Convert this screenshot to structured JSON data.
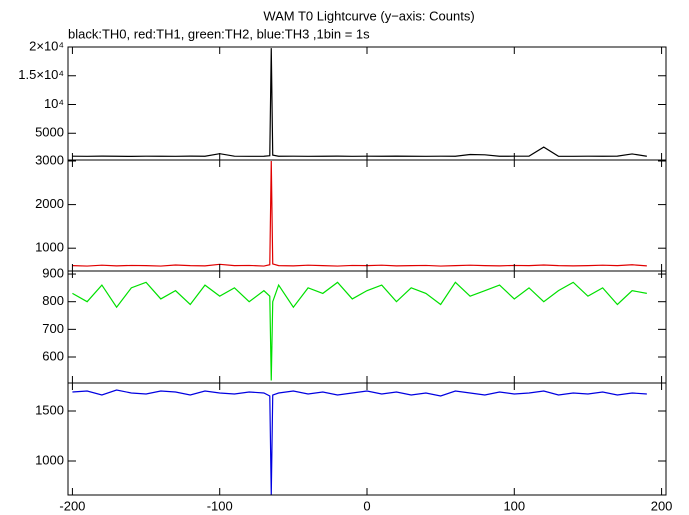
{
  "chart_data": [
    {
      "type": "line",
      "title": "WAM T0 Lightcurve (y−axis: Counts)",
      "subtitle": "black:TH0, red:TH1, green:TH2, blue:TH3 ,1bin = 1s",
      "x": [
        -200,
        -190,
        -180,
        -170,
        -160,
        -150,
        -140,
        -130,
        -120,
        -110,
        -100,
        -90,
        -80,
        -70,
        -66,
        -65,
        -64,
        -60,
        -50,
        -40,
        -30,
        -20,
        -10,
        0,
        10,
        20,
        30,
        40,
        50,
        60,
        70,
        80,
        90,
        100,
        110,
        120,
        130,
        140,
        150,
        160,
        170,
        180,
        190
      ],
      "series": [
        {
          "name": "TH0",
          "color": "#000000",
          "values": [
            1010,
            990,
            1020,
            1000,
            980,
            1010,
            1000,
            990,
            1020,
            1000,
            1450,
            1010,
            990,
            1000,
            1100,
            19800,
            1200,
            1000,
            1010,
            990,
            1000,
            1020,
            990,
            1010,
            1000,
            1030,
            1000,
            990,
            1010,
            1000,
            1300,
            1250,
            1000,
            1010,
            1020,
            2600,
            1000,
            990,
            1010,
            1000,
            1020,
            1400,
            1000
          ]
        }
      ],
      "xlim": [
        -203,
        203
      ],
      "ylim": [
        350,
        20000
      ],
      "yticks": [
        {
          "value": 5000,
          "label": "5000"
        },
        {
          "value": 10000,
          "label": "10⁴"
        },
        {
          "value": 15000,
          "label": "1.5×10⁴"
        },
        {
          "value": 20000,
          "label": "2×10⁴"
        }
      ]
    },
    {
      "type": "line",
      "x": [
        -200,
        -190,
        -180,
        -170,
        -160,
        -150,
        -140,
        -130,
        -120,
        -110,
        -100,
        -90,
        -80,
        -70,
        -66,
        -65,
        -64,
        -60,
        -50,
        -40,
        -30,
        -20,
        -10,
        0,
        10,
        20,
        30,
        40,
        50,
        60,
        70,
        80,
        90,
        100,
        110,
        120,
        130,
        140,
        150,
        160,
        170,
        180,
        190
      ],
      "series": [
        {
          "name": "TH1",
          "color": "#e00000",
          "values": [
            600,
            590,
            610,
            595,
            605,
            600,
            590,
            615,
            600,
            595,
            630,
            600,
            605,
            590,
            620,
            3000,
            640,
            600,
            595,
            610,
            600,
            590,
            605,
            600,
            610,
            595,
            600,
            605,
            590,
            600,
            610,
            600,
            595,
            605,
            600,
            615,
            600,
            595,
            600,
            610,
            600,
            620,
            595
          ]
        }
      ],
      "xlim": [
        -203,
        203
      ],
      "ylim": [
        477,
        3023
      ],
      "yticks": [
        1000,
        2000,
        3000
      ]
    },
    {
      "type": "line",
      "x": [
        -200,
        -190,
        -180,
        -170,
        -160,
        -150,
        -140,
        -130,
        -120,
        -110,
        -100,
        -90,
        -80,
        -70,
        -66,
        -65,
        -64,
        -60,
        -50,
        -40,
        -30,
        -20,
        -10,
        0,
        10,
        20,
        30,
        40,
        50,
        60,
        70,
        80,
        90,
        100,
        110,
        120,
        130,
        140,
        150,
        160,
        170,
        180,
        190
      ],
      "series": [
        {
          "name": "TH2",
          "color": "#00e000",
          "values": [
            830,
            800,
            860,
            780,
            850,
            870,
            810,
            840,
            790,
            860,
            820,
            850,
            800,
            840,
            820,
            515,
            800,
            860,
            780,
            850,
            830,
            870,
            810,
            840,
            860,
            800,
            850,
            830,
            790,
            870,
            820,
            840,
            860,
            810,
            850,
            800,
            840,
            870,
            820,
            850,
            790,
            840,
            830
          ]
        }
      ],
      "xlim": [
        -203,
        203
      ],
      "ylim": [
        506,
        911
      ],
      "yticks": [
        600,
        700,
        800,
        900
      ]
    },
    {
      "type": "line",
      "x": [
        -200,
        -190,
        -180,
        -170,
        -160,
        -150,
        -140,
        -130,
        -120,
        -110,
        -100,
        -90,
        -80,
        -70,
        -66,
        -65,
        -64,
        -60,
        -50,
        -40,
        -30,
        -20,
        -10,
        0,
        10,
        20,
        30,
        40,
        50,
        60,
        70,
        80,
        90,
        100,
        110,
        120,
        130,
        140,
        150,
        160,
        170,
        180,
        190
      ],
      "series": [
        {
          "name": "TH3",
          "color": "#0000e0",
          "values": [
            1690,
            1700,
            1660,
            1710,
            1680,
            1670,
            1700,
            1690,
            1660,
            1700,
            1680,
            1670,
            1690,
            1680,
            1650,
            660,
            1660,
            1680,
            1700,
            1670,
            1690,
            1660,
            1680,
            1700,
            1670,
            1690,
            1660,
            1680,
            1650,
            1700,
            1680,
            1660,
            1690,
            1670,
            1680,
            1700,
            1660,
            1680,
            1670,
            1690,
            1660,
            1680,
            1670
          ]
        }
      ],
      "xlim": [
        -203,
        203
      ],
      "ylim": [
        660,
        1780
      ],
      "yticks": [
        1000,
        1500
      ],
      "xticks": [
        -200,
        -100,
        0,
        100,
        200
      ]
    }
  ]
}
